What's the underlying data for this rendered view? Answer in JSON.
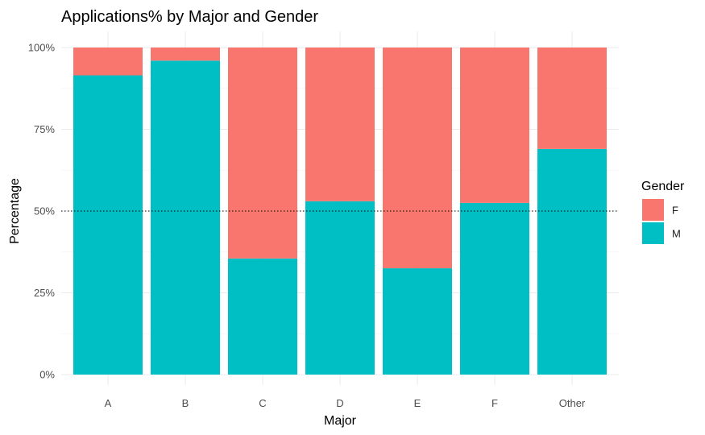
{
  "chart_data": {
    "type": "bar",
    "stacked": true,
    "title": "Applications% by Major and Gender",
    "xlabel": "Major",
    "ylabel": "Percentage",
    "categories": [
      "A",
      "B",
      "C",
      "D",
      "E",
      "F",
      "Other"
    ],
    "series": [
      {
        "name": "F",
        "color": "#F8766D",
        "values": [
          8.5,
          4.0,
          64.5,
          47.0,
          67.5,
          47.5,
          31.0
        ]
      },
      {
        "name": "M",
        "color": "#00BFC4",
        "values": [
          91.5,
          96.0,
          35.5,
          53.0,
          32.5,
          52.5,
          69.0
        ]
      }
    ],
    "ylim": [
      0,
      100
    ],
    "y_ticks": [
      "0%",
      "25%",
      "50%",
      "75%",
      "100%"
    ],
    "reference_line": {
      "y": 50,
      "style": "dotted"
    },
    "grid": true,
    "legend": {
      "title": "Gender",
      "placement": "right",
      "entries": [
        "F",
        "M"
      ]
    }
  }
}
